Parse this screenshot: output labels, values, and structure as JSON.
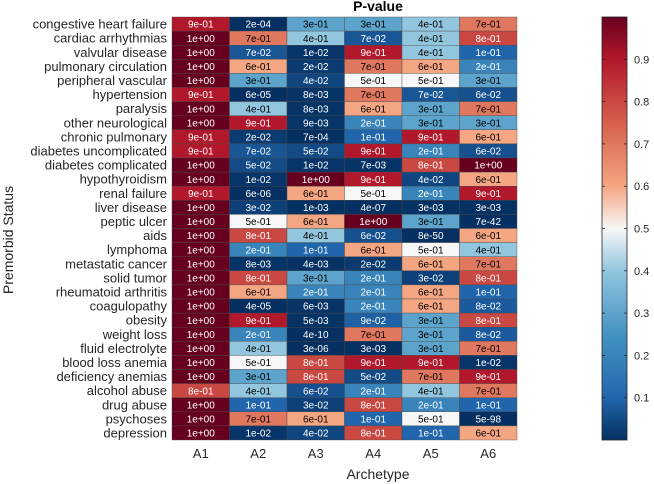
{
  "chart_data": {
    "type": "heatmap",
    "title": "P-value",
    "xlabel": "Archetype",
    "ylabel": "Premorbid Status",
    "columns": [
      "A1",
      "A2",
      "A3",
      "A4",
      "A5",
      "A6"
    ],
    "rows": [
      {
        "label": "congestive heart failure",
        "cells": [
          "9e-01",
          "2e-04",
          "3e-01",
          "3e-01",
          "4e-01",
          "7e-01"
        ]
      },
      {
        "label": "cardiac arrhythmias",
        "cells": [
          "1e+00",
          "7e-01",
          "4e-01",
          "7e-02",
          "4e-01",
          "8e-01"
        ]
      },
      {
        "label": "valvular disease",
        "cells": [
          "1e+00",
          "7e-02",
          "1e-02",
          "9e-01",
          "4e-01",
          "1e-01"
        ]
      },
      {
        "label": "pulmonary circulation",
        "cells": [
          "1e+00",
          "6e-01",
          "2e-02",
          "7e-01",
          "6e-01",
          "2e-01"
        ]
      },
      {
        "label": "peripheral vascular",
        "cells": [
          "1e+00",
          "3e-01",
          "4e-02",
          "5e-01",
          "5e-01",
          "3e-01"
        ]
      },
      {
        "label": "hypertension",
        "cells": [
          "9e-01",
          "6e-05",
          "8e-03",
          "7e-01",
          "7e-02",
          "6e-02"
        ]
      },
      {
        "label": "paralysis",
        "cells": [
          "1e+00",
          "4e-01",
          "8e-03",
          "6e-01",
          "3e-01",
          "7e-01"
        ]
      },
      {
        "label": "other neurological",
        "cells": [
          "1e+00",
          "9e-01",
          "9e-03",
          "2e-01",
          "3e-01",
          "3e-01"
        ]
      },
      {
        "label": "chronic pulmonary",
        "cells": [
          "9e-01",
          "2e-02",
          "7e-04",
          "1e-01",
          "9e-01",
          "6e-01"
        ]
      },
      {
        "label": "diabetes uncomplicated",
        "cells": [
          "9e-01",
          "7e-02",
          "5e-02",
          "9e-01",
          "2e-01",
          "6e-02"
        ]
      },
      {
        "label": "diabetes complicated",
        "cells": [
          "1e+00",
          "5e-02",
          "1e-02",
          "7e-03",
          "8e-01",
          "1e+00"
        ]
      },
      {
        "label": "hypothyroidism",
        "cells": [
          "1e+00",
          "1e-02",
          "1e+00",
          "9e-01",
          "4e-02",
          "6e-01"
        ]
      },
      {
        "label": "renal failure",
        "cells": [
          "9e-01",
          "6e-06",
          "6e-01",
          "5e-01",
          "2e-01",
          "9e-01"
        ]
      },
      {
        "label": "liver disease",
        "cells": [
          "1e+00",
          "3e-02",
          "1e-03",
          "4e-07",
          "3e-03",
          "3e-03"
        ]
      },
      {
        "label": "peptic ulcer",
        "cells": [
          "1e+00",
          "5e-01",
          "6e-01",
          "1e+00",
          "3e-01",
          "7e-42"
        ]
      },
      {
        "label": "aids",
        "cells": [
          "1e+00",
          "8e-01",
          "4e-01",
          "6e-02",
          "8e-50",
          "6e-01"
        ]
      },
      {
        "label": "lymphoma",
        "cells": [
          "1e+00",
          "2e-01",
          "1e-01",
          "6e-01",
          "5e-01",
          "4e-01"
        ]
      },
      {
        "label": "metastatic cancer",
        "cells": [
          "1e+00",
          "8e-03",
          "4e-03",
          "2e-02",
          "6e-01",
          "7e-01"
        ]
      },
      {
        "label": "solid tumor",
        "cells": [
          "1e+00",
          "8e-01",
          "3e-01",
          "2e-01",
          "3e-02",
          "8e-01"
        ]
      },
      {
        "label": "rheumatoid arthritis",
        "cells": [
          "1e+00",
          "6e-01",
          "2e-01",
          "2e-01",
          "6e-01",
          "1e-01"
        ]
      },
      {
        "label": "coagulopathy",
        "cells": [
          "1e+00",
          "4e-05",
          "6e-03",
          "2e-01",
          "6e-01",
          "8e-02"
        ]
      },
      {
        "label": "obesity",
        "cells": [
          "1e+00",
          "9e-01",
          "5e-03",
          "9e-02",
          "3e-01",
          "8e-01"
        ]
      },
      {
        "label": "weight loss",
        "cells": [
          "1e+00",
          "2e-01",
          "4e-10",
          "7e-01",
          "3e-01",
          "8e-02"
        ]
      },
      {
        "label": "fluid electrolyte",
        "cells": [
          "1e+00",
          "4e-01",
          "3e-06",
          "3e-03",
          "3e-01",
          "7e-01"
        ]
      },
      {
        "label": "blood loss anemia",
        "cells": [
          "1e+00",
          "5e-01",
          "8e-01",
          "9e-01",
          "9e-01",
          "1e-02"
        ]
      },
      {
        "label": "deficiency anemias",
        "cells": [
          "1e+00",
          "3e-01",
          "8e-01",
          "5e-02",
          "7e-01",
          "9e-01"
        ]
      },
      {
        "label": "alcohol abuse",
        "cells": [
          "8e-01",
          "4e-01",
          "6e-02",
          "2e-01",
          "4e-01",
          "7e-01"
        ]
      },
      {
        "label": "drug abuse",
        "cells": [
          "1e+00",
          "1e-01",
          "3e-02",
          "8e-01",
          "2e-01",
          "1e-01"
        ]
      },
      {
        "label": "psychoses",
        "cells": [
          "1e+00",
          "7e-01",
          "6e-01",
          "1e-01",
          "5e-01",
          "5e-98"
        ]
      },
      {
        "label": "depression",
        "cells": [
          "1e+00",
          "1e-02",
          "4e-02",
          "8e-01",
          "1e-01",
          "6e-01"
        ]
      }
    ],
    "colorbar": {
      "range": [
        0,
        1
      ],
      "ticks": [
        "0.1",
        "0.2",
        "0.3",
        "0.4",
        "0.5",
        "0.6",
        "0.7",
        "0.8",
        "0.9"
      ],
      "colormap": "diverging blue-white-red",
      "low_color": "#053061",
      "mid_color": "#f7f7f7",
      "high_color": "#67001f"
    }
  }
}
